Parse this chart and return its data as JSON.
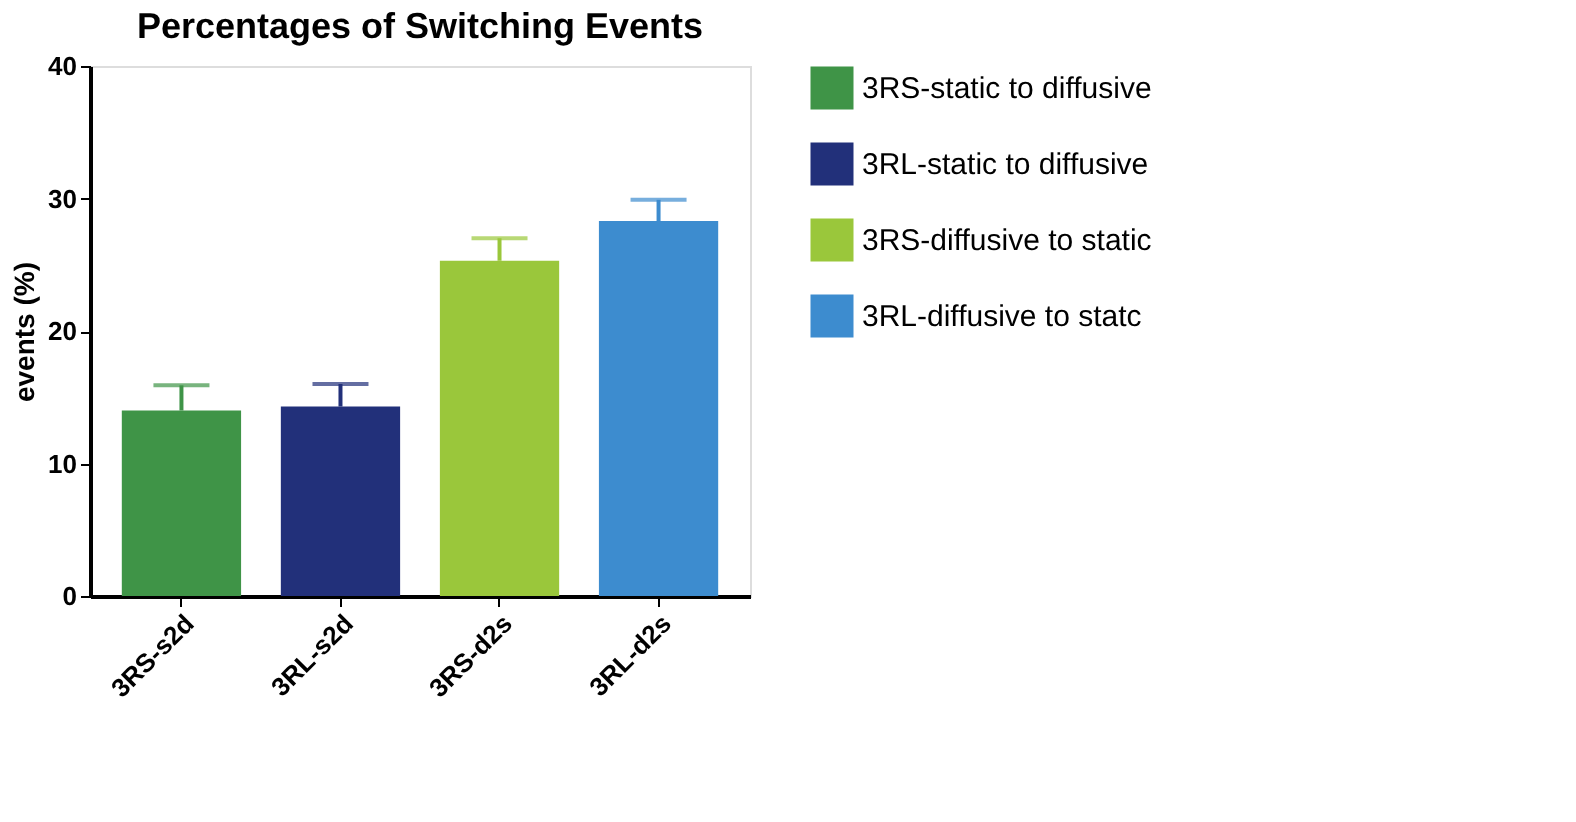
{
  "chart_data": {
    "type": "bar",
    "title": "Percentages of Switching Events",
    "ylabel": "events (%)",
    "categories": [
      "3RS-s2d",
      "3RL-s2d",
      "3RS-d2s",
      "3RL-d2s"
    ],
    "series": [
      {
        "name": "3RS-static to diffusive",
        "color": "#3f9447",
        "values": [
          14.0,
          null,
          null,
          null
        ],
        "errors": [
          [
            14.0,
            15.9
          ],
          null,
          null,
          null
        ]
      },
      {
        "name": "3RL-static to diffusive",
        "color": "#22307a",
        "values": [
          null,
          14.3,
          null,
          null
        ],
        "errors": [
          null,
          [
            14.3,
            16.0
          ],
          null,
          null
        ]
      },
      {
        "name": "3RS-diffusive to static",
        "color": "#9ac73b",
        "values": [
          null,
          null,
          25.3,
          null
        ],
        "errors": [
          null,
          null,
          [
            25.3,
            27.0
          ],
          null
        ]
      },
      {
        "name": "3RL-diffusive to statc",
        "color": "#3d8ccf",
        "values": [
          null,
          null,
          null,
          28.3
        ],
        "errors": [
          null,
          null,
          null,
          [
            28.3,
            29.9
          ]
        ]
      }
    ],
    "ylim": [
      0,
      40
    ],
    "yticks": [
      0,
      10,
      20,
      30,
      40
    ],
    "grid": false,
    "legend": "right"
  }
}
